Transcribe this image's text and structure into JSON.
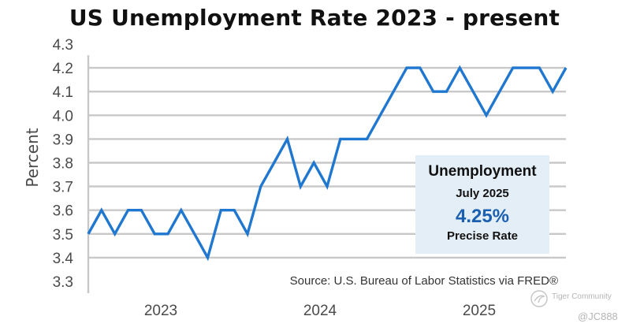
{
  "chart_data": {
    "type": "line",
    "title": "US Unemployment Rate 2023 - present",
    "ylabel": "Percent",
    "xlabel": "",
    "ylim": [
      3.3,
      4.3
    ],
    "yticks": [
      "3.3",
      "3.4",
      "3.5",
      "3.6",
      "3.7",
      "3.8",
      "3.9",
      "4.0",
      "4.1",
      "4.2",
      "4.3"
    ],
    "xticks": [
      "2023",
      "2024",
      "2025"
    ],
    "x": [
      "2022-07",
      "2022-08",
      "2022-09",
      "2022-10",
      "2022-11",
      "2022-12",
      "2023-01",
      "2023-02",
      "2023-03",
      "2023-04",
      "2023-05",
      "2023-06",
      "2023-07",
      "2023-08",
      "2023-09",
      "2023-10",
      "2023-11",
      "2023-12",
      "2024-01",
      "2024-02",
      "2024-03",
      "2024-04",
      "2024-05",
      "2024-06",
      "2024-07",
      "2024-08",
      "2024-09",
      "2024-10",
      "2024-11",
      "2024-12",
      "2025-01",
      "2025-02",
      "2025-03",
      "2025-04",
      "2025-05",
      "2025-06",
      "2025-07"
    ],
    "series": [
      {
        "values": [
          3.5,
          3.6,
          3.5,
          3.6,
          3.6,
          3.5,
          3.5,
          3.6,
          3.5,
          3.4,
          3.6,
          3.6,
          3.5,
          3.7,
          3.8,
          3.9,
          3.7,
          3.8,
          3.7,
          3.9,
          3.9,
          3.9,
          4.0,
          4.1,
          4.2,
          4.2,
          4.1,
          4.1,
          4.2,
          4.1,
          4.0,
          4.1,
          4.2,
          4.2,
          4.2,
          4.1,
          4.2
        ],
        "color": "#1f77d0"
      }
    ],
    "grid": "horizontal",
    "colors": {
      "line": "#1f77d0",
      "grid": "#c8c8c8",
      "callout_bg": "#e4eef7",
      "callout_value": "#1a5fb0"
    },
    "annotations": {
      "callout": {
        "title": "Unemployment",
        "date": "July 2025",
        "value": "4.25%",
        "subtitle": "Precise Rate"
      },
      "source": "Source: U.S. Bureau of Labor Statistics via FRED®"
    }
  },
  "watermark": {
    "brand": "Tiger Community",
    "handle": "@JC888"
  }
}
